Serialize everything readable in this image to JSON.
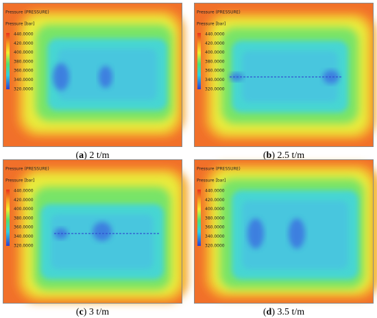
{
  "panels": [
    {
      "title": "Pressure (PRESSURE)",
      "legend_title": "Pressure [bar]",
      "legend_ticks": [
        "440.0000",
        "420.0000",
        "400.0000",
        "380.0000",
        "360.0000",
        "340.0000",
        "320.0000"
      ],
      "caption_open": "(",
      "caption_letter": "a",
      "caption_rest": ") 2 t/m"
    },
    {
      "title": "Pressure (PRESSURE)",
      "legend_title": "Pressure [bar]",
      "legend_ticks": [
        "440.0000",
        "420.0000",
        "400.0000",
        "380.0000",
        "360.0000",
        "340.0000",
        "320.0000"
      ],
      "caption_open": "(",
      "caption_letter": "b",
      "caption_rest": ") 2.5 t/m"
    },
    {
      "title": "Pressure (PRESSURE)",
      "legend_title": "Pressure [bar]",
      "legend_ticks": [
        "440.0000",
        "420.0000",
        "400.0000",
        "380.0000",
        "360.0000",
        "340.0000",
        "320.0000"
      ],
      "caption_open": "(",
      "caption_letter": "c",
      "caption_rest": ") 3 t/m"
    },
    {
      "title": "Pressure (PRESSURE)",
      "legend_title": "Pressure [bar]",
      "legend_ticks": [
        "440.0000",
        "420.0000",
        "400.0000",
        "380.0000",
        "360.0000",
        "340.0000",
        "320.0000"
      ],
      "caption_open": "(",
      "caption_letter": "d",
      "caption_rest": ") 3.5 t/m"
    }
  ]
}
